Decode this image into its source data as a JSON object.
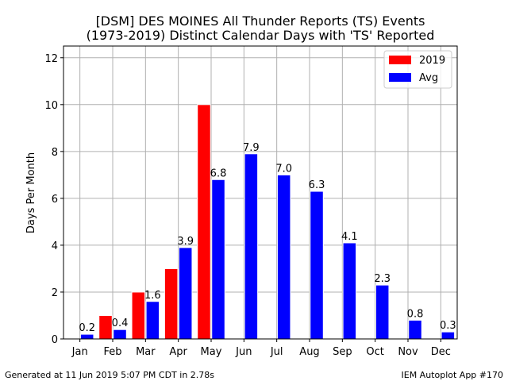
{
  "chart_data": {
    "type": "bar",
    "title_line1": "[DSM] DES MOINES All Thunder Reports (TS) Events",
    "title_line2": "(1973-2019) Distinct Calendar Days with 'TS' Reported",
    "xlabel": "",
    "ylabel": "Days Per Month",
    "categories": [
      "Jan",
      "Feb",
      "Mar",
      "Apr",
      "May",
      "Jun",
      "Jul",
      "Aug",
      "Sep",
      "Oct",
      "Nov",
      "Dec"
    ],
    "ylim": [
      0,
      12.5
    ],
    "yticks": [
      0,
      2,
      4,
      6,
      8,
      10,
      12
    ],
    "grid": true,
    "legend_position": "top-right",
    "series": [
      {
        "name": "2019",
        "color": "#ff0000",
        "values": [
          0,
          1,
          2,
          3,
          10,
          null,
          null,
          null,
          null,
          null,
          null,
          null
        ],
        "show_labels": false
      },
      {
        "name": "Avg",
        "color": "#0000ff",
        "values": [
          0.2,
          0.4,
          1.6,
          3.9,
          6.8,
          7.9,
          7.0,
          6.3,
          4.1,
          2.3,
          0.8,
          0.3
        ],
        "show_labels": true
      }
    ]
  },
  "footer": {
    "left": "Generated at 11 Jun 2019 5:07 PM CDT in 2.78s",
    "right": "IEM Autoplot App #170"
  }
}
